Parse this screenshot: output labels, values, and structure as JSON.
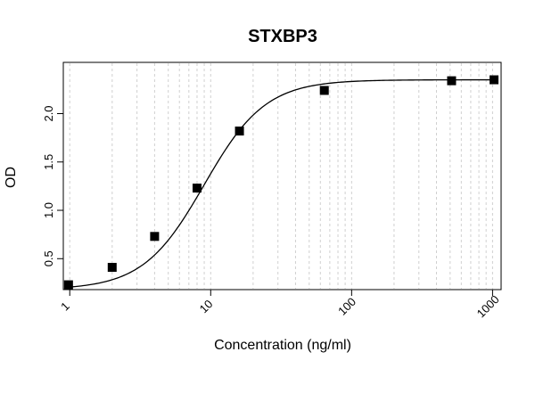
{
  "chart_data": {
    "type": "scatter",
    "title": "STXBP3",
    "xlabel": "Concentration (ng/ml)",
    "ylabel": "OD",
    "x_scale": "log",
    "xlim": [
      0.9,
      1150
    ],
    "ylim": [
      0.18,
      2.53
    ],
    "x_ticks": [
      1,
      10,
      100,
      1000
    ],
    "x_tick_labels": [
      "1",
      "10",
      "100",
      "1000"
    ],
    "y_ticks": [
      0.5,
      1.0,
      1.5,
      2.0
    ],
    "y_tick_labels": [
      "0.5",
      "1.0",
      "1.5",
      "2.0"
    ],
    "grid": "vertical dotted lines at minor log ticks",
    "series": [
      {
        "marker": "square",
        "x": [
          0.98,
          2,
          4,
          8,
          16,
          64,
          512,
          1024
        ],
        "y": [
          0.23,
          0.41,
          0.73,
          1.23,
          1.82,
          2.24,
          2.34,
          2.35
        ]
      }
    ],
    "fit_curve": {
      "model": "4PL",
      "bottom": 0.18,
      "top": 2.35,
      "ec50": 9,
      "hill": 2
    },
    "colors": {
      "marker": "#000000",
      "curve": "#000000",
      "grid": "#d0d0d0",
      "frame": "#000000"
    }
  }
}
